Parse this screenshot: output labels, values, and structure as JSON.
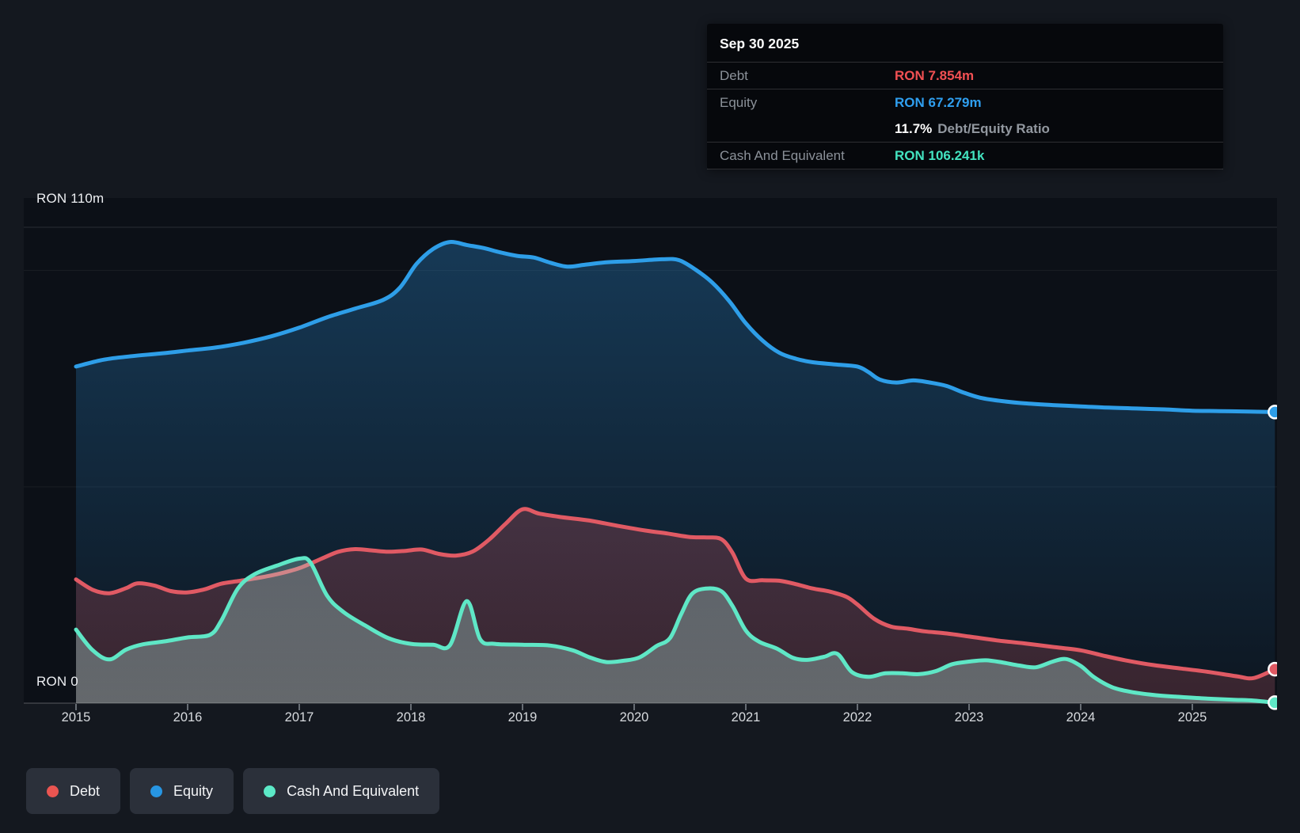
{
  "page": {
    "background": "#14181f",
    "plot_background": "#0c1017"
  },
  "y_axis": {
    "top_label": "RON 110m",
    "zero_label": "RON 0"
  },
  "x_axis": {
    "ticks": [
      "2015",
      "2016",
      "2017",
      "2018",
      "2019",
      "2020",
      "2021",
      "2022",
      "2023",
      "2024",
      "2025"
    ]
  },
  "tooltip": {
    "date": "Sep 30 2025",
    "debt_label": "Debt",
    "debt_value": "RON 7.854m",
    "debt_color": "#f15053",
    "equity_label": "Equity",
    "equity_value": "RON 67.279m",
    "equity_color": "#2f9ff0",
    "ratio_value": "11.7%",
    "ratio_label": "Debt/Equity Ratio",
    "cash_label": "Cash And Equivalent",
    "cash_value": "RON 106.241k",
    "cash_color": "#43e3c0"
  },
  "legend": {
    "items": [
      {
        "label": "Debt",
        "color": "#ea5551"
      },
      {
        "label": "Equity",
        "color": "#2796e3"
      },
      {
        "label": "Cash And Equivalent",
        "color": "#5ce9c7"
      }
    ]
  },
  "chart_data": {
    "type": "area",
    "title": "Debt to Equity history",
    "unit": "RON millions",
    "xlim": [
      2015,
      2025.78
    ],
    "ylim": [
      0,
      110
    ],
    "grid_on": true,
    "legend_position": "bottom-left",
    "gridlines": [
      {
        "value": 110,
        "label": "RON 110m"
      },
      {
        "value": 100
      },
      {
        "value": 50
      },
      {
        "value": 0,
        "label": "RON 0"
      }
    ],
    "x_tick_years": [
      2015,
      2016,
      2017,
      2018,
      2019,
      2020,
      2021,
      2022,
      2023,
      2024,
      2025
    ],
    "last_point": {
      "date": "Sep 30 2025",
      "debt_m": 7.854,
      "equity_m": 67.279,
      "cash_m": 0.106241,
      "debt_equity_ratio_pct": 11.7
    },
    "series": [
      {
        "name": "Equity",
        "color": "#2e9ee8",
        "fill_top": "rgba(42,140,212,0.34)",
        "fill_bottom": "rgba(42,140,212,0.05)",
        "points": [
          [
            2015.0,
            77.8
          ],
          [
            2015.25,
            79.4
          ],
          [
            2015.5,
            80.2
          ],
          [
            2015.75,
            80.8
          ],
          [
            2016.0,
            81.5
          ],
          [
            2016.25,
            82.2
          ],
          [
            2016.5,
            83.3
          ],
          [
            2016.75,
            84.8
          ],
          [
            2017.0,
            86.8
          ],
          [
            2017.25,
            89.2
          ],
          [
            2017.5,
            91.2
          ],
          [
            2017.75,
            93.2
          ],
          [
            2017.9,
            96.0
          ],
          [
            2018.05,
            101.5
          ],
          [
            2018.2,
            105.0
          ],
          [
            2018.35,
            106.6
          ],
          [
            2018.5,
            105.9
          ],
          [
            2018.65,
            105.2
          ],
          [
            2018.8,
            104.2
          ],
          [
            2018.95,
            103.4
          ],
          [
            2019.1,
            103.0
          ],
          [
            2019.25,
            101.8
          ],
          [
            2019.4,
            100.9
          ],
          [
            2019.55,
            101.3
          ],
          [
            2019.75,
            101.9
          ],
          [
            2020.0,
            102.2
          ],
          [
            2020.25,
            102.6
          ],
          [
            2020.4,
            102.4
          ],
          [
            2020.55,
            100.2
          ],
          [
            2020.7,
            97.2
          ],
          [
            2020.85,
            93.0
          ],
          [
            2021.0,
            87.8
          ],
          [
            2021.15,
            83.8
          ],
          [
            2021.3,
            81.0
          ],
          [
            2021.45,
            79.6
          ],
          [
            2021.6,
            78.8
          ],
          [
            2021.8,
            78.3
          ],
          [
            2022.0,
            77.8
          ],
          [
            2022.1,
            76.5
          ],
          [
            2022.2,
            74.8
          ],
          [
            2022.35,
            74.1
          ],
          [
            2022.5,
            74.6
          ],
          [
            2022.65,
            74.1
          ],
          [
            2022.8,
            73.3
          ],
          [
            2022.95,
            71.8
          ],
          [
            2023.1,
            70.6
          ],
          [
            2023.3,
            69.8
          ],
          [
            2023.5,
            69.3
          ],
          [
            2023.75,
            68.9
          ],
          [
            2024.0,
            68.6
          ],
          [
            2024.25,
            68.3
          ],
          [
            2024.5,
            68.1
          ],
          [
            2024.75,
            67.9
          ],
          [
            2025.0,
            67.6
          ],
          [
            2025.25,
            67.5
          ],
          [
            2025.5,
            67.4
          ],
          [
            2025.74,
            67.279
          ]
        ]
      },
      {
        "name": "Debt",
        "color": "#e05a64",
        "fill_top": "rgba(226,90,100,0.30)",
        "fill_bottom": "rgba(226,90,100,0.20)",
        "points": [
          [
            2015.0,
            28.6
          ],
          [
            2015.15,
            26.2
          ],
          [
            2015.3,
            25.4
          ],
          [
            2015.45,
            26.6
          ],
          [
            2015.55,
            27.7
          ],
          [
            2015.7,
            27.2
          ],
          [
            2015.85,
            25.9
          ],
          [
            2016.0,
            25.6
          ],
          [
            2016.15,
            26.3
          ],
          [
            2016.3,
            27.6
          ],
          [
            2016.45,
            28.2
          ],
          [
            2016.6,
            28.8
          ],
          [
            2016.8,
            29.8
          ],
          [
            2017.0,
            31.2
          ],
          [
            2017.2,
            33.4
          ],
          [
            2017.35,
            35.0
          ],
          [
            2017.5,
            35.6
          ],
          [
            2017.65,
            35.3
          ],
          [
            2017.8,
            35.0
          ],
          [
            2017.95,
            35.2
          ],
          [
            2018.1,
            35.5
          ],
          [
            2018.25,
            34.5
          ],
          [
            2018.4,
            34.1
          ],
          [
            2018.55,
            35.0
          ],
          [
            2018.7,
            37.8
          ],
          [
            2018.85,
            41.5
          ],
          [
            2019.0,
            44.8
          ],
          [
            2019.15,
            43.8
          ],
          [
            2019.35,
            43.0
          ],
          [
            2019.6,
            42.2
          ],
          [
            2019.85,
            41.0
          ],
          [
            2020.1,
            39.9
          ],
          [
            2020.3,
            39.2
          ],
          [
            2020.5,
            38.4
          ],
          [
            2020.65,
            38.3
          ],
          [
            2020.78,
            37.9
          ],
          [
            2020.88,
            34.8
          ],
          [
            2021.0,
            28.8
          ],
          [
            2021.15,
            28.4
          ],
          [
            2021.3,
            28.3
          ],
          [
            2021.45,
            27.5
          ],
          [
            2021.6,
            26.5
          ],
          [
            2021.75,
            25.8
          ],
          [
            2021.9,
            24.6
          ],
          [
            2022.0,
            22.8
          ],
          [
            2022.15,
            19.5
          ],
          [
            2022.3,
            17.7
          ],
          [
            2022.45,
            17.2
          ],
          [
            2022.6,
            16.6
          ],
          [
            2022.8,
            16.1
          ],
          [
            2023.0,
            15.4
          ],
          [
            2023.25,
            14.5
          ],
          [
            2023.5,
            13.8
          ],
          [
            2023.75,
            13.0
          ],
          [
            2024.0,
            12.2
          ],
          [
            2024.2,
            11.0
          ],
          [
            2024.4,
            9.9
          ],
          [
            2024.65,
            8.8
          ],
          [
            2024.9,
            8.0
          ],
          [
            2025.15,
            7.2
          ],
          [
            2025.4,
            6.2
          ],
          [
            2025.55,
            5.8
          ],
          [
            2025.74,
            7.854
          ]
        ]
      },
      {
        "name": "Cash And Equivalent",
        "color": "#5fe7c6",
        "fill_top": "rgba(135,232,213,0.16)",
        "fill_bottom": "rgba(185,235,226,0.34)",
        "points": [
          [
            2015.0,
            17.0
          ],
          [
            2015.15,
            12.2
          ],
          [
            2015.3,
            10.1
          ],
          [
            2015.45,
            12.4
          ],
          [
            2015.6,
            13.6
          ],
          [
            2015.8,
            14.3
          ],
          [
            2016.0,
            15.2
          ],
          [
            2016.2,
            15.8
          ],
          [
            2016.3,
            19.0
          ],
          [
            2016.45,
            26.5
          ],
          [
            2016.6,
            29.8
          ],
          [
            2016.8,
            31.8
          ],
          [
            2017.0,
            33.4
          ],
          [
            2017.1,
            32.5
          ],
          [
            2017.25,
            24.8
          ],
          [
            2017.4,
            21.0
          ],
          [
            2017.6,
            17.8
          ],
          [
            2017.8,
            15.0
          ],
          [
            2018.0,
            13.7
          ],
          [
            2018.2,
            13.5
          ],
          [
            2018.35,
            13.4
          ],
          [
            2018.5,
            23.6
          ],
          [
            2018.62,
            14.8
          ],
          [
            2018.75,
            13.7
          ],
          [
            2019.0,
            13.5
          ],
          [
            2019.25,
            13.3
          ],
          [
            2019.45,
            12.2
          ],
          [
            2019.6,
            10.6
          ],
          [
            2019.75,
            9.5
          ],
          [
            2019.9,
            9.8
          ],
          [
            2020.05,
            10.6
          ],
          [
            2020.2,
            13.2
          ],
          [
            2020.32,
            15.0
          ],
          [
            2020.42,
            20.5
          ],
          [
            2020.52,
            25.3
          ],
          [
            2020.65,
            26.5
          ],
          [
            2020.78,
            25.9
          ],
          [
            2020.88,
            22.5
          ],
          [
            2021.0,
            16.8
          ],
          [
            2021.12,
            14.2
          ],
          [
            2021.28,
            12.6
          ],
          [
            2021.42,
            10.5
          ],
          [
            2021.55,
            10.0
          ],
          [
            2021.7,
            10.7
          ],
          [
            2021.82,
            11.4
          ],
          [
            2021.95,
            7.2
          ],
          [
            2022.1,
            6.1
          ],
          [
            2022.25,
            6.9
          ],
          [
            2022.4,
            6.9
          ],
          [
            2022.55,
            6.7
          ],
          [
            2022.7,
            7.4
          ],
          [
            2022.85,
            9.0
          ],
          [
            2023.0,
            9.6
          ],
          [
            2023.15,
            9.9
          ],
          [
            2023.3,
            9.4
          ],
          [
            2023.45,
            8.7
          ],
          [
            2023.6,
            8.3
          ],
          [
            2023.75,
            9.6
          ],
          [
            2023.87,
            10.2
          ],
          [
            2024.0,
            8.6
          ],
          [
            2024.12,
            6.0
          ],
          [
            2024.28,
            3.7
          ],
          [
            2024.45,
            2.6
          ],
          [
            2024.65,
            1.9
          ],
          [
            2024.85,
            1.5
          ],
          [
            2025.1,
            1.1
          ],
          [
            2025.35,
            0.8
          ],
          [
            2025.55,
            0.6
          ],
          [
            2025.74,
            0.106
          ]
        ]
      }
    ]
  }
}
